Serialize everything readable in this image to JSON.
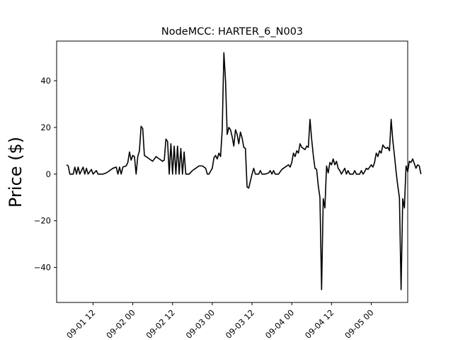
{
  "chart_data": {
    "type": "line",
    "title": "NodeMCC: HARTER_6_N003",
    "xlabel": "",
    "ylabel": "Price ($)",
    "ylim": [
      -55,
      57
    ],
    "xlim": [
      "2023-09-01 01:00",
      "2023-09-05 11:00"
    ],
    "grid": false,
    "legend": "none",
    "colors": {
      "line": "#000000",
      "axes": "#000000",
      "background": "#ffffff"
    },
    "x_ticks": [
      {
        "x": "2023-09-01 12:00",
        "label": "09-01 12"
      },
      {
        "x": "2023-09-02 00:00",
        "label": "09-02 00"
      },
      {
        "x": "2023-09-02 12:00",
        "label": "09-02 12"
      },
      {
        "x": "2023-09-03 00:00",
        "label": "09-03 00"
      },
      {
        "x": "2023-09-03 12:00",
        "label": "09-03 12"
      },
      {
        "x": "2023-09-04 00:00",
        "label": "09-04 00"
      },
      {
        "x": "2023-09-04 12:00",
        "label": "09-04 12"
      },
      {
        "x": "2023-09-05 00:00",
        "label": "09-05 00"
      }
    ],
    "y_ticks": [
      {
        "y": -40,
        "label": "−40"
      },
      {
        "y": -20,
        "label": "−20"
      },
      {
        "y": 0,
        "label": "0"
      },
      {
        "y": 20,
        "label": "20"
      },
      {
        "y": 40,
        "label": "40"
      }
    ],
    "series": [
      {
        "points": [
          [
            "2023-09-01 04:00",
            4.0
          ],
          [
            "2023-09-01 04:30",
            3.5
          ],
          [
            "2023-09-01 05:00",
            0.0
          ],
          [
            "2023-09-01 06:00",
            0.0
          ],
          [
            "2023-09-01 06:30",
            3.0
          ],
          [
            "2023-09-01 07:00",
            0.0
          ],
          [
            "2023-09-01 07:30",
            3.0
          ],
          [
            "2023-09-01 08:00",
            0.0
          ],
          [
            "2023-09-01 09:00",
            3.0
          ],
          [
            "2023-09-01 09:30",
            0.0
          ],
          [
            "2023-09-01 10:00",
            2.5
          ],
          [
            "2023-09-01 10:30",
            0.0
          ],
          [
            "2023-09-01 11:30",
            2.0
          ],
          [
            "2023-09-01 12:00",
            0.0
          ],
          [
            "2023-09-01 13:00",
            1.5
          ],
          [
            "2023-09-01 13:30",
            0.0
          ],
          [
            "2023-09-01 15:00",
            0.0
          ],
          [
            "2023-09-01 16:00",
            0.5
          ],
          [
            "2023-09-01 17:00",
            1.5
          ],
          [
            "2023-09-01 18:00",
            2.5
          ],
          [
            "2023-09-01 19:00",
            3.0
          ],
          [
            "2023-09-01 19:30",
            0.0
          ],
          [
            "2023-09-01 20:00",
            3.0
          ],
          [
            "2023-09-01 20:30",
            0.0
          ],
          [
            "2023-09-01 21:00",
            3.0
          ],
          [
            "2023-09-01 22:00",
            3.5
          ],
          [
            "2023-09-01 22:30",
            5.0
          ],
          [
            "2023-09-01 23:00",
            9.5
          ],
          [
            "2023-09-01 23:30",
            6.0
          ],
          [
            "2023-09-02 00:00",
            8.0
          ],
          [
            "2023-09-02 00:30",
            7.5
          ],
          [
            "2023-09-02 01:00",
            0.0
          ],
          [
            "2023-09-02 01:30",
            7.5
          ],
          [
            "2023-09-02 02:00",
            10.0
          ],
          [
            "2023-09-02 02:30",
            20.5
          ],
          [
            "2023-09-02 03:00",
            19.5
          ],
          [
            "2023-09-02 03:30",
            8.0
          ],
          [
            "2023-09-02 04:00",
            7.5
          ],
          [
            "2023-09-02 05:00",
            6.5
          ],
          [
            "2023-09-02 06:00",
            5.5
          ],
          [
            "2023-09-02 07:00",
            7.5
          ],
          [
            "2023-09-02 08:00",
            6.5
          ],
          [
            "2023-09-02 09:00",
            5.5
          ],
          [
            "2023-09-02 09:30",
            6.0
          ],
          [
            "2023-09-02 10:00",
            15.0
          ],
          [
            "2023-09-02 10:30",
            14.0
          ],
          [
            "2023-09-02 11:00",
            0.0
          ],
          [
            "2023-09-02 11:30",
            13.0
          ],
          [
            "2023-09-02 12:00",
            0.0
          ],
          [
            "2023-09-02 12:30",
            12.0
          ],
          [
            "2023-09-02 13:00",
            0.0
          ],
          [
            "2023-09-02 13:30",
            12.0
          ],
          [
            "2023-09-02 14:00",
            0.0
          ],
          [
            "2023-09-02 14:30",
            11.0
          ],
          [
            "2023-09-02 15:00",
            0.0
          ],
          [
            "2023-09-02 15:30",
            9.5
          ],
          [
            "2023-09-02 16:00",
            0.0
          ],
          [
            "2023-09-02 17:00",
            0.0
          ],
          [
            "2023-09-02 18:00",
            1.5
          ],
          [
            "2023-09-02 19:00",
            2.5
          ],
          [
            "2023-09-02 20:00",
            3.5
          ],
          [
            "2023-09-02 21:00",
            3.5
          ],
          [
            "2023-09-02 22:00",
            2.5
          ],
          [
            "2023-09-02 22:30",
            0.0
          ],
          [
            "2023-09-02 23:00",
            0.0
          ],
          [
            "2023-09-03 00:00",
            2.5
          ],
          [
            "2023-09-03 00:30",
            7.0
          ],
          [
            "2023-09-03 01:00",
            8.0
          ],
          [
            "2023-09-03 01:30",
            6.5
          ],
          [
            "2023-09-03 02:00",
            9.0
          ],
          [
            "2023-09-03 02:30",
            7.5
          ],
          [
            "2023-09-03 03:00",
            19.0
          ],
          [
            "2023-09-03 03:30",
            52.0
          ],
          [
            "2023-09-03 04:00",
            40.0
          ],
          [
            "2023-09-03 04:30",
            17.0
          ],
          [
            "2023-09-03 05:00",
            20.0
          ],
          [
            "2023-09-03 05:30",
            19.0
          ],
          [
            "2023-09-03 06:00",
            16.0
          ],
          [
            "2023-09-03 06:30",
            12.0
          ],
          [
            "2023-09-03 07:00",
            19.0
          ],
          [
            "2023-09-03 07:30",
            17.0
          ],
          [
            "2023-09-03 08:00",
            13.0
          ],
          [
            "2023-09-03 08:30",
            18.0
          ],
          [
            "2023-09-03 09:00",
            15.5
          ],
          [
            "2023-09-03 09:30",
            11.5
          ],
          [
            "2023-09-03 10:00",
            11.0
          ],
          [
            "2023-09-03 10:30",
            -5.5
          ],
          [
            "2023-09-03 11:00",
            -6.0
          ],
          [
            "2023-09-03 12:00",
            0.0
          ],
          [
            "2023-09-03 12:30",
            2.5
          ],
          [
            "2023-09-03 13:00",
            0.0
          ],
          [
            "2023-09-03 14:00",
            0.0
          ],
          [
            "2023-09-03 14:30",
            1.5
          ],
          [
            "2023-09-03 15:00",
            0.0
          ],
          [
            "2023-09-03 16:00",
            0.0
          ],
          [
            "2023-09-03 17:00",
            0.5
          ],
          [
            "2023-09-03 17:30",
            1.5
          ],
          [
            "2023-09-03 18:00",
            0.0
          ],
          [
            "2023-09-03 18:30",
            1.5
          ],
          [
            "2023-09-03 19:00",
            0.0
          ],
          [
            "2023-09-03 20:00",
            0.0
          ],
          [
            "2023-09-03 21:00",
            2.0
          ],
          [
            "2023-09-03 22:00",
            3.0
          ],
          [
            "2023-09-03 23:00",
            4.0
          ],
          [
            "2023-09-03 23:30",
            3.0
          ],
          [
            "2023-09-04 00:00",
            5.0
          ],
          [
            "2023-09-04 00:30",
            9.0
          ],
          [
            "2023-09-04 01:00",
            7.5
          ],
          [
            "2023-09-04 01:30",
            10.0
          ],
          [
            "2023-09-04 02:00",
            9.0
          ],
          [
            "2023-09-04 02:30",
            13.0
          ],
          [
            "2023-09-04 03:00",
            11.5
          ],
          [
            "2023-09-04 03:30",
            11.0
          ],
          [
            "2023-09-04 04:00",
            10.5
          ],
          [
            "2023-09-04 04:30",
            12.0
          ],
          [
            "2023-09-04 05:00",
            11.5
          ],
          [
            "2023-09-04 05:30",
            23.5
          ],
          [
            "2023-09-04 06:00",
            15.0
          ],
          [
            "2023-09-04 06:30",
            8.0
          ],
          [
            "2023-09-04 07:00",
            2.5
          ],
          [
            "2023-09-04 07:30",
            2.0
          ],
          [
            "2023-09-04 08:00",
            -5.0
          ],
          [
            "2023-09-04 08:30",
            -10.0
          ],
          [
            "2023-09-04 09:00",
            -49.5
          ],
          [
            "2023-09-04 09:30",
            -10.5
          ],
          [
            "2023-09-04 10:00",
            -14.5
          ],
          [
            "2023-09-04 10:30",
            3.5
          ],
          [
            "2023-09-04 11:00",
            0.5
          ],
          [
            "2023-09-04 11:30",
            5.0
          ],
          [
            "2023-09-04 12:00",
            4.0
          ],
          [
            "2023-09-04 12:30",
            6.5
          ],
          [
            "2023-09-04 13:00",
            4.0
          ],
          [
            "2023-09-04 13:30",
            5.5
          ],
          [
            "2023-09-04 14:00",
            2.5
          ],
          [
            "2023-09-04 14:30",
            1.5
          ],
          [
            "2023-09-04 15:00",
            0.0
          ],
          [
            "2023-09-04 16:00",
            2.5
          ],
          [
            "2023-09-04 16:30",
            0.0
          ],
          [
            "2023-09-04 17:00",
            1.5
          ],
          [
            "2023-09-04 17:30",
            0.0
          ],
          [
            "2023-09-04 18:30",
            0.0
          ],
          [
            "2023-09-04 19:00",
            1.5
          ],
          [
            "2023-09-04 19:30",
            0.0
          ],
          [
            "2023-09-04 20:30",
            0.0
          ],
          [
            "2023-09-04 21:00",
            1.5
          ],
          [
            "2023-09-04 21:30",
            0.0
          ],
          [
            "2023-09-04 22:00",
            1.0
          ],
          [
            "2023-09-04 22:30",
            2.5
          ],
          [
            "2023-09-04 23:00",
            2.0
          ],
          [
            "2023-09-04 23:30",
            3.0
          ],
          [
            "2023-09-05 00:00",
            4.0
          ],
          [
            "2023-09-05 00:30",
            3.0
          ],
          [
            "2023-09-05 01:00",
            5.0
          ],
          [
            "2023-09-05 01:30",
            9.0
          ],
          [
            "2023-09-05 02:00",
            7.5
          ],
          [
            "2023-09-05 02:30",
            10.0
          ],
          [
            "2023-09-05 03:00",
            9.0
          ],
          [
            "2023-09-05 03:30",
            12.5
          ],
          [
            "2023-09-05 04:00",
            11.5
          ],
          [
            "2023-09-05 04:30",
            11.0
          ],
          [
            "2023-09-05 05:00",
            11.5
          ],
          [
            "2023-09-05 05:30",
            10.0
          ],
          [
            "2023-09-05 06:00",
            23.5
          ],
          [
            "2023-09-05 06:30",
            14.5
          ],
          [
            "2023-09-05 07:00",
            8.0
          ],
          [
            "2023-09-05 07:30",
            1.0
          ],
          [
            "2023-09-05 08:00",
            -5.0
          ],
          [
            "2023-09-05 08:30",
            -10.0
          ],
          [
            "2023-09-05 09:00",
            -49.5
          ],
          [
            "2023-09-05 09:30",
            -10.5
          ],
          [
            "2023-09-05 10:00",
            -14.5
          ],
          [
            "2023-09-05 10:30",
            3.5
          ],
          [
            "2023-09-05 11:00",
            1.0
          ],
          [
            "2023-09-05 11:30",
            5.5
          ],
          [
            "2023-09-05 12:00",
            5.0
          ],
          [
            "2023-09-05 12:30",
            6.5
          ],
          [
            "2023-09-05 13:00",
            4.5
          ],
          [
            "2023-09-05 13:30",
            2.5
          ],
          [
            "2023-09-05 14:00",
            4.0
          ],
          [
            "2023-09-05 14:30",
            3.5
          ],
          [
            "2023-09-05 15:00",
            0.0
          ]
        ]
      }
    ]
  }
}
